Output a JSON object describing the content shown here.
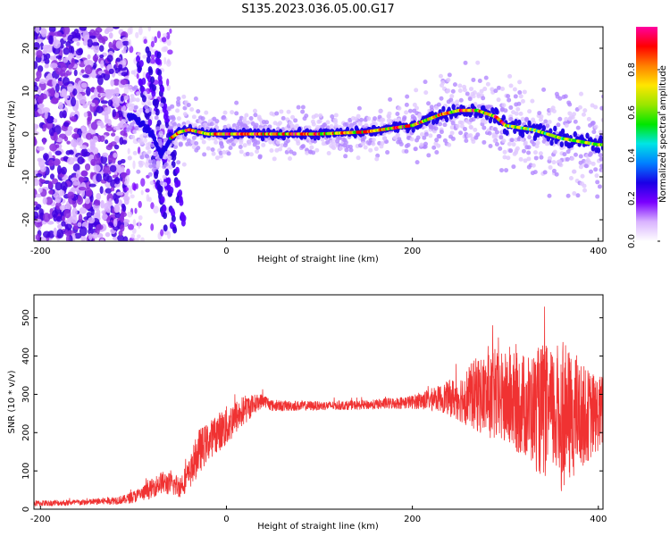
{
  "title": "S135.2023.036.05.00.G17",
  "chart_data": [
    {
      "type": "heatmap",
      "xlabel": "Height of straight line (km)",
      "ylabel": "Frequency (Hz)",
      "xlim": [
        -207,
        405
      ],
      "ylim": [
        -25,
        25
      ],
      "xticks": [
        -200,
        0,
        200,
        400
      ],
      "yticks": [
        -20,
        -10,
        0,
        10,
        20
      ],
      "grid": false,
      "colorbar": {
        "label": "Normalized spectral amplitude",
        "range": [
          0,
          1
        ],
        "ticks": [
          0.0,
          0.2,
          0.4,
          0.6,
          0.8
        ],
        "colors": [
          "#ffffff",
          "#d9b3ff",
          "#7a00ff",
          "#1a00e6",
          "#0080ff",
          "#00e5e5",
          "#00e600",
          "#99e600",
          "#ffe600",
          "#ff8000",
          "#ff0000",
          "#ff00a0"
        ]
      },
      "ridge": {
        "description_points_x": [
          -100,
          -90,
          -80,
          -70,
          -60,
          -50,
          -40,
          -20,
          0,
          50,
          100,
          150,
          200,
          230,
          250,
          270,
          290,
          300,
          330,
          360,
          400
        ],
        "description_points_y": [
          4,
          2,
          0,
          -5,
          -1,
          0.5,
          1,
          0,
          0,
          0,
          0,
          0.5,
          2,
          4.5,
          5.5,
          5.5,
          4,
          2,
          1,
          -1,
          -2.5
        ]
      }
    },
    {
      "type": "line",
      "xlabel": "Height of straight line (km)",
      "ylabel": "SNR (10 * v/v)",
      "xlim": [
        -207,
        405
      ],
      "ylim": [
        0,
        560
      ],
      "xticks": [
        -200,
        0,
        200,
        400
      ],
      "yticks": [
        0,
        100,
        200,
        300,
        400,
        500
      ],
      "grid": false,
      "series": [
        {
          "color": "#f03232",
          "envelope_x": [
            -207,
            -150,
            -110,
            -90,
            -70,
            -50,
            -40,
            -30,
            -20,
            -10,
            0,
            10,
            20,
            30,
            40,
            50,
            100,
            150,
            200,
            230,
            250,
            270,
            290,
            310,
            330,
            340,
            350,
            360,
            370,
            380,
            390,
            400,
            405
          ],
          "envelope_mean": [
            15,
            18,
            25,
            40,
            70,
            60,
            90,
            150,
            175,
            200,
            215,
            240,
            260,
            275,
            285,
            270,
            270,
            272,
            280,
            290,
            290,
            300,
            290,
            280,
            260,
            255,
            255,
            245,
            240,
            245,
            245,
            250,
            255
          ],
          "envelope_spread": [
            8,
            8,
            12,
            20,
            30,
            30,
            40,
            60,
            50,
            50,
            55,
            45,
            40,
            25,
            18,
            15,
            12,
            12,
            18,
            35,
            60,
            100,
            120,
            130,
            150,
            180,
            160,
            200,
            170,
            140,
            120,
            100,
            100
          ]
        }
      ]
    }
  ]
}
